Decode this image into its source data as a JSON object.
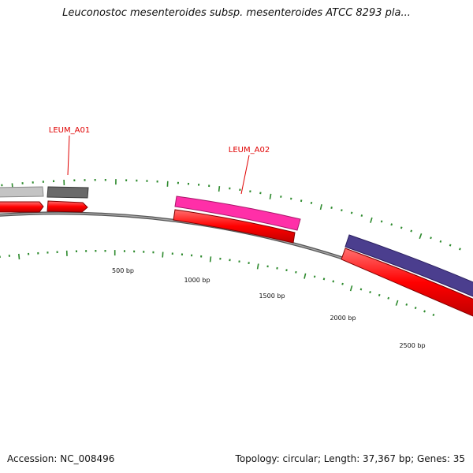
{
  "header": {
    "title": "Leuconostoc mesenteroides subsp. mesenteroides ATCC 8293 pla..."
  },
  "footer": {
    "accession": "Accession: NC_008496",
    "info": "Topology: circular; Length: 37,367 bp; Genes: 35"
  },
  "map": {
    "length_bp": 37367,
    "gene_labels": [
      {
        "name": "LEUM_A01",
        "color": "#e00000"
      },
      {
        "name": "LEUM_A02",
        "color": "#e00000"
      }
    ],
    "scale_labels": [
      "500 bp",
      "1000 bp",
      "1500 bp",
      "2000 bp",
      "2500 bp"
    ],
    "colors": {
      "backbone": "#888888",
      "cds": "#ff0000",
      "tick": "#2d8a2d",
      "gene_gray_light": "#c4c4c4",
      "gene_gray_dark": "#6a6a6a",
      "gene_pink": "#ff2fa8",
      "gene_purple": "#4b3e8e"
    }
  }
}
